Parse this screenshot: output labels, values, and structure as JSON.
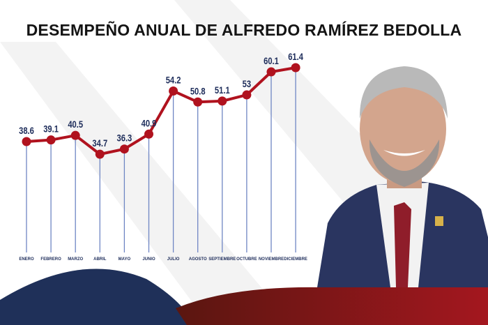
{
  "chart_data": {
    "type": "line",
    "title": "DESEMPEÑO ANUAL DE ALFREDO RAMÍREZ BEDOLLA",
    "categories": [
      "ENERO",
      "FEBRERO",
      "MARZO",
      "ABRIL",
      "MAYO",
      "JUNIO",
      "JULIO",
      "AGOSTO",
      "SEPTIEMBRE",
      "OCTUBRE",
      "NOVIEMBRE",
      "DICIEMBRE"
    ],
    "values": [
      38.6,
      39.1,
      40.5,
      34.7,
      36.3,
      40.9,
      54.2,
      50.8,
      51.1,
      53,
      60.1,
      61.4
    ],
    "labels": [
      "38.6",
      "39.1",
      "40.5",
      "34.7",
      "36.3",
      "40.9",
      "54.2",
      "50.8",
      "51.1",
      "53",
      "60.1",
      "61.4"
    ],
    "ylim": [
      34,
      62
    ],
    "grid": false,
    "line_color": "#b0121e",
    "drop_line_color": "#6f86c4",
    "label_color": "#1d2c5a"
  }
}
